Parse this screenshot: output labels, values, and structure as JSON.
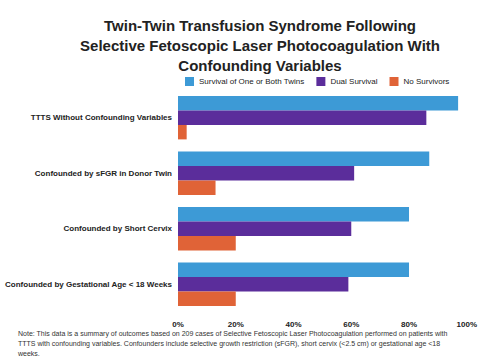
{
  "chart_data": {
    "type": "bar",
    "orientation": "horizontal",
    "title": "Twin-Twin Transfusion Syndrome Following\nSelective Fetoscopic Laser Photocoagulation With\nConfounding Variables",
    "note": "Note: This data is a summary of outcomes based on 209 cases of Selective Fetoscopic Laser Photocoagulation performed on patients with TTTS with confounding variables. Confounders include selective growth restriction (sFGR), short cervix (<2.5 cm) or gestational age <18 weeks.",
    "categories": [
      "TTTS Without Confounding Variables",
      "Confounded by sFGR in Donor Twin",
      "Confounded by Short Cervix",
      "Confounded by Gestational Age < 18 Weeks"
    ],
    "series": [
      {
        "name": "Survival of One or Both Twins",
        "color": "#3d9ad6",
        "values": [
          97,
          87,
          80,
          80
        ]
      },
      {
        "name": "Dual Survival",
        "color": "#5b2d9b",
        "values": [
          86,
          61,
          60,
          59
        ]
      },
      {
        "name": "No Survivors",
        "color": "#e06337",
        "values": [
          3,
          13,
          20,
          20
        ]
      }
    ],
    "xlim": [
      0,
      100
    ],
    "xticks": [
      {
        "value": 0,
        "label": "0%"
      },
      {
        "value": 20,
        "label": "20%"
      },
      {
        "value": 40,
        "label": "40%"
      },
      {
        "value": 60,
        "label": "60%"
      },
      {
        "value": 80,
        "label": "80%"
      },
      {
        "value": 100,
        "label": "100%"
      }
    ],
    "grid": false,
    "legend": "top"
  }
}
